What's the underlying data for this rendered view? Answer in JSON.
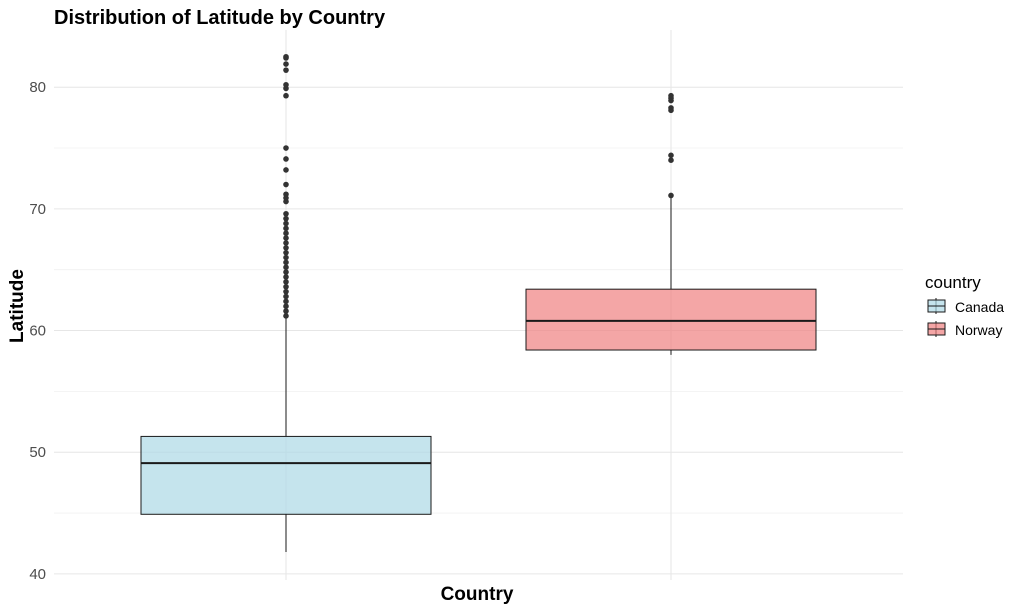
{
  "chart_data": {
    "type": "boxplot",
    "title": "Distribution of Latitude by Country",
    "xlabel": "Country",
    "ylabel": "Latitude",
    "ylim": [
      39.5,
      84.7
    ],
    "yticks": [
      40,
      50,
      60,
      70,
      80
    ],
    "grid": true,
    "legend": {
      "title": "country",
      "placement": "right"
    },
    "categories": [
      "Canada",
      "Norway"
    ],
    "series": [
      {
        "name": "Canada",
        "color": "#add8e6",
        "q1": 44.9,
        "median": 49.1,
        "q3": 51.3,
        "whisker_low": 41.8,
        "whisker_high": 61.0,
        "outliers": [
          61.2,
          61.6,
          62.0,
          62.4,
          62.8,
          63.2,
          63.6,
          64.0,
          64.4,
          64.8,
          65.2,
          65.6,
          66.0,
          66.4,
          66.8,
          67.2,
          67.6,
          68.0,
          68.4,
          68.8,
          69.2,
          69.6,
          70.6,
          70.9,
          71.2,
          72.0,
          73.2,
          74.1,
          75.0,
          79.3,
          79.9,
          80.2,
          81.4,
          81.9,
          82.4,
          82.5
        ]
      },
      {
        "name": "Norway",
        "color": "#f08080",
        "q1": 58.4,
        "median": 60.8,
        "q3": 63.4,
        "whisker_low": 58.0,
        "whisker_high": 70.9,
        "outliers": [
          71.1,
          74.0,
          74.4,
          78.1,
          78.3,
          78.9,
          79.1,
          79.3
        ]
      }
    ]
  }
}
